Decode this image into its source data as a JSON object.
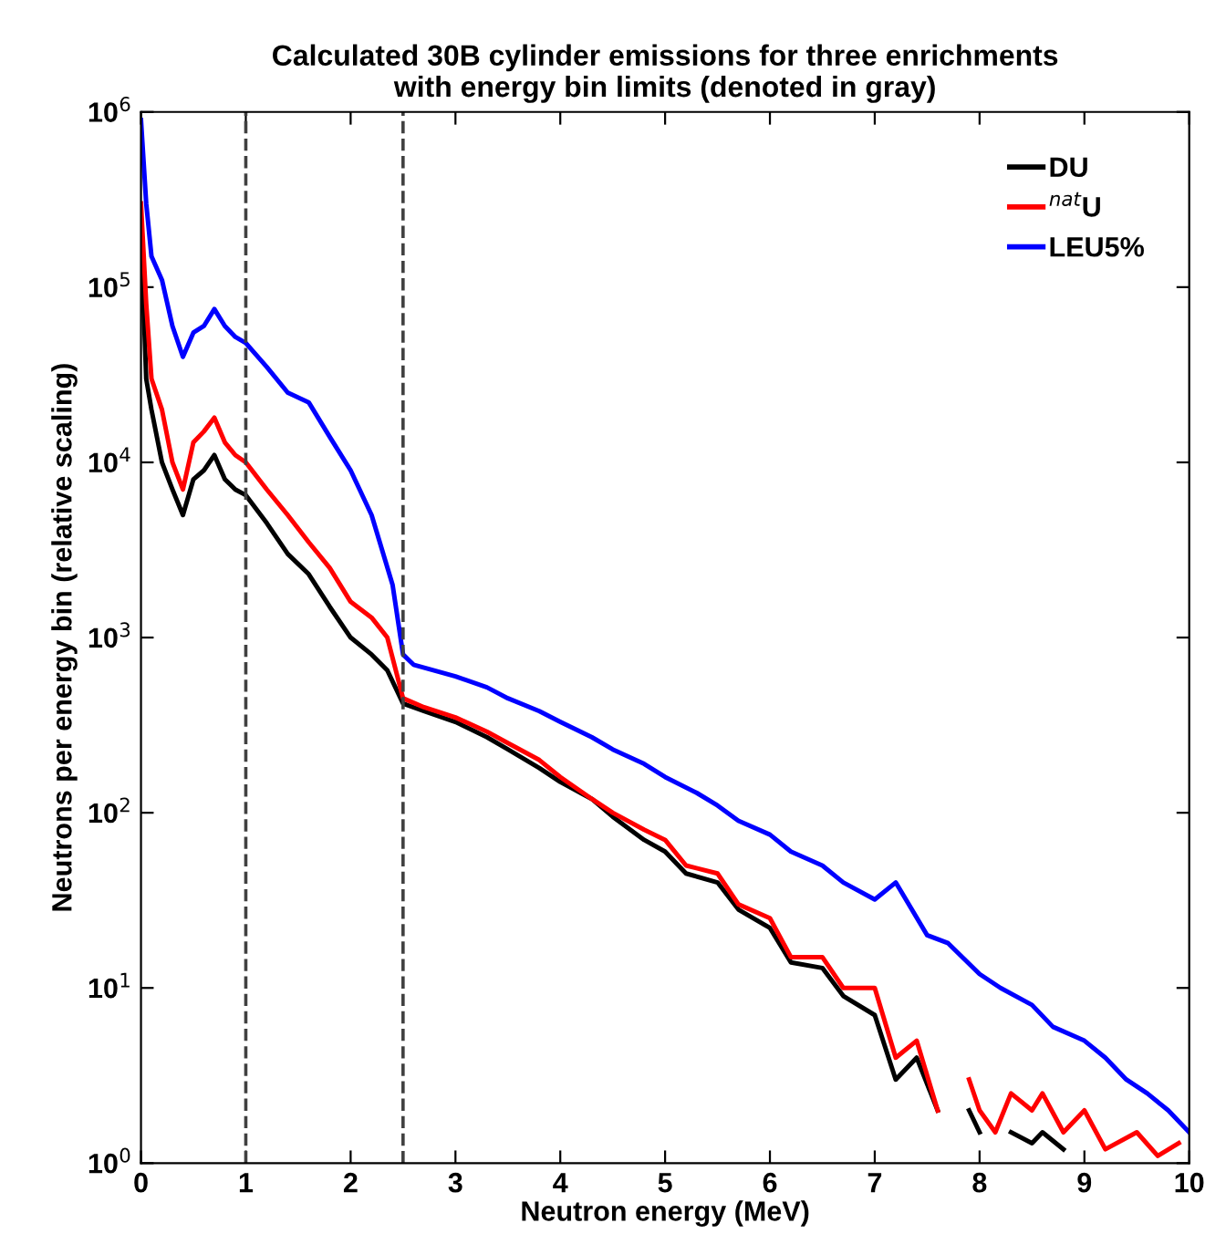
{
  "chart_data": {
    "type": "line",
    "title": "Calculated 30B cylinder emissions for three enrichments\nwith energy bin limits (denoted in gray)",
    "xlabel": "Neutron energy (MeV)",
    "ylabel": "Neutrons per energy bin (relative scaling)",
    "log": "y",
    "xlim": [
      0,
      10
    ],
    "ylim": [
      1,
      1000000
    ],
    "xticks": [
      0,
      1,
      2,
      3,
      4,
      5,
      6,
      7,
      8,
      9,
      10
    ],
    "yticks": [
      {
        "value": 1,
        "label": "10$^{0}$"
      },
      {
        "value": 10,
        "label": "10$^{1}$"
      },
      {
        "value": 100,
        "label": "10$^{2}$"
      },
      {
        "value": 1000,
        "label": "10$^{3}$"
      },
      {
        "value": 10000,
        "label": "10$^{4}$"
      },
      {
        "value": 100000,
        "label": "10$^{5}$"
      },
      {
        "value": 1000000,
        "label": "10$^{6}$"
      }
    ],
    "grid": false,
    "legend": "top right",
    "line_style": "solid",
    "marker": "none",
    "ref_lines": [
      {
        "axis": "x",
        "value": 1,
        "color": "#404040",
        "line_style": "dashed"
      },
      {
        "axis": "x",
        "value": 2.5,
        "color": "#404040",
        "line_style": "dashed"
      }
    ],
    "series": [
      {
        "name": "DU",
        "color": "#000000",
        "x": [
          0,
          0.05,
          0.1,
          0.2,
          0.3,
          0.4,
          0.5,
          0.6,
          0.7,
          0.8,
          0.9,
          1.0,
          1.2,
          1.4,
          1.6,
          1.8,
          2.0,
          2.2,
          2.35,
          2.5,
          2.7,
          3.0,
          3.3,
          3.5,
          3.8,
          4.0,
          4.3,
          4.5,
          4.8,
          5.0,
          5.2,
          5.5,
          5.7,
          6.0,
          6.2,
          6.5,
          6.7,
          7.0,
          7.2,
          7.4,
          7.6,
          7.75,
          7.9,
          8.0,
          8.15,
          8.3,
          8.5,
          8.6,
          8.8
        ],
        "values": [
          200000,
          30000,
          20000,
          10000,
          7000,
          5000,
          8000,
          9000,
          11000,
          8000,
          7000,
          6500,
          4500,
          3000,
          2300,
          1500,
          1000,
          800,
          650,
          420,
          380,
          330,
          270,
          230,
          180,
          150,
          120,
          95,
          70,
          60,
          45,
          40,
          28,
          22,
          14,
          13,
          9,
          7,
          3,
          4,
          2,
          null,
          2,
          1.5,
          null,
          1.5,
          1.3,
          1.5,
          1.2
        ]
      },
      {
        "name": "$^{nat}$U",
        "color": "#ff0000",
        "x": [
          0,
          0.05,
          0.1,
          0.2,
          0.3,
          0.4,
          0.5,
          0.6,
          0.7,
          0.8,
          0.9,
          1.0,
          1.2,
          1.4,
          1.6,
          1.8,
          2.0,
          2.2,
          2.35,
          2.5,
          2.7,
          3.0,
          3.3,
          3.5,
          3.8,
          4.0,
          4.3,
          4.5,
          4.8,
          5.0,
          5.2,
          5.5,
          5.7,
          6.0,
          6.2,
          6.5,
          6.7,
          7.0,
          7.2,
          7.4,
          7.6,
          7.75,
          7.9,
          8.0,
          8.15,
          8.3,
          8.5,
          8.6,
          8.8,
          9.0,
          9.2,
          9.5,
          9.7,
          9.9
        ],
        "values": [
          300000,
          80000,
          30000,
          20000,
          10000,
          7000,
          13000,
          15000,
          18000,
          13000,
          11000,
          10000,
          7000,
          5000,
          3500,
          2500,
          1600,
          1300,
          1000,
          450,
          400,
          350,
          290,
          250,
          200,
          160,
          120,
          100,
          80,
          70,
          50,
          45,
          30,
          25,
          15,
          15,
          10,
          10,
          4,
          5,
          2,
          null,
          3,
          2,
          1.5,
          2.5,
          2,
          2.5,
          1.5,
          2,
          1.2,
          1.5,
          1.1,
          1.3
        ]
      },
      {
        "name": "LEU5%",
        "color": "#0000ff",
        "x": [
          0,
          0.05,
          0.1,
          0.2,
          0.3,
          0.4,
          0.5,
          0.6,
          0.7,
          0.8,
          0.9,
          1.0,
          1.2,
          1.4,
          1.6,
          1.8,
          2.0,
          2.2,
          2.4,
          2.5,
          2.6,
          3.0,
          3.3,
          3.5,
          3.8,
          4.0,
          4.3,
          4.5,
          4.8,
          5.0,
          5.3,
          5.5,
          5.7,
          6.0,
          6.2,
          6.5,
          6.7,
          7.0,
          7.2,
          7.5,
          7.7,
          8.0,
          8.2,
          8.5,
          8.7,
          9.0,
          9.2,
          9.4,
          9.6,
          9.8,
          10.0
        ],
        "values": [
          900000,
          300000,
          150000,
          110000,
          60000,
          40000,
          55000,
          60000,
          75000,
          60000,
          52000,
          48000,
          35000,
          25000,
          22000,
          14000,
          9000,
          5000,
          2000,
          800,
          700,
          600,
          520,
          450,
          380,
          330,
          270,
          230,
          190,
          160,
          130,
          110,
          90,
          75,
          60,
          50,
          40,
          32,
          40,
          20,
          18,
          12,
          10,
          8,
          6,
          5,
          4,
          3,
          2.5,
          2,
          1.5
        ]
      }
    ]
  }
}
